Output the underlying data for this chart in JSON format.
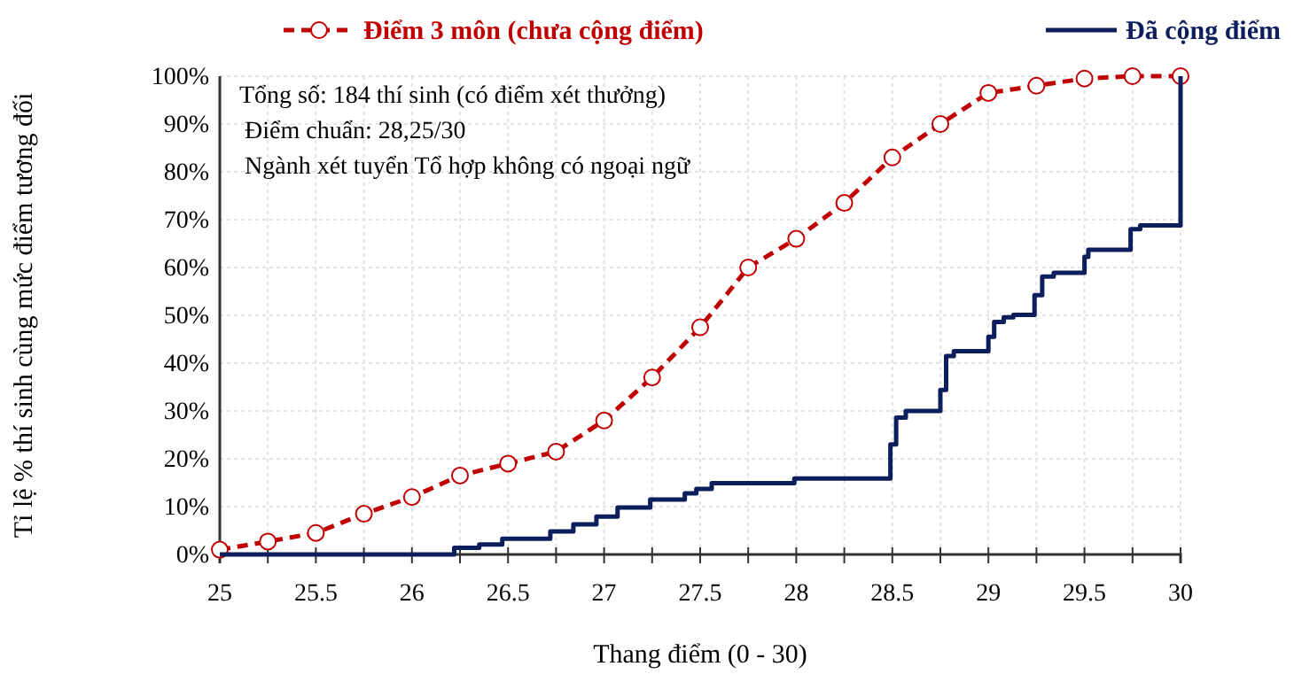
{
  "chart_data": {
    "type": "line",
    "xlabel": "Thang điểm (0 - 30)",
    "ylabel": "Tỉ lệ % thí sinh cùng mức điểm tương đối",
    "xlim": [
      25,
      30
    ],
    "xticks": [
      25,
      {
        "value": 25.25,
        "label": null
      },
      25.5,
      {
        "value": 25.75,
        "label": null
      },
      26,
      {
        "value": 26.25,
        "label": null
      },
      26.5,
      {
        "value": 26.75,
        "label": null
      },
      27,
      {
        "value": 27.25,
        "label": null
      },
      27.5,
      {
        "value": 27.75,
        "label": null
      },
      28,
      {
        "value": 28.25,
        "label": null
      },
      28.5,
      {
        "value": 28.75,
        "label": null
      },
      29,
      {
        "value": 29.25,
        "label": null
      },
      29.5,
      {
        "value": 29.75,
        "label": null
      },
      30
    ],
    "ylim": [
      0,
      100
    ],
    "yticks": [
      {
        "value": 0,
        "label": "0%"
      },
      {
        "value": 10,
        "label": "10%"
      },
      {
        "value": 20,
        "label": "20%"
      },
      {
        "value": 30,
        "label": "30%"
      },
      {
        "value": 40,
        "label": "40%"
      },
      {
        "value": 50,
        "label": "50%"
      },
      {
        "value": 60,
        "label": "60%"
      },
      {
        "value": 70,
        "label": "70%"
      },
      {
        "value": 80,
        "label": "80%"
      },
      {
        "value": 90,
        "label": "90%"
      },
      {
        "value": 100,
        "label": "100%"
      }
    ],
    "grid": true,
    "legend": "top",
    "annotations": [
      "Tổng số: 184 thí sinh  (có điểm xét thưởng)",
      "Điểm chuẩn: 28,25/30",
      "Ngành xét tuyển Tổ hợp không có ngoại ngữ"
    ],
    "series": [
      {
        "name": "Điểm 3 môn (chưa cộng điểm)",
        "color": "#c00000",
        "line_style": "dashed",
        "marker": "circle",
        "x": [
          25,
          25.25,
          25.5,
          25.75,
          26,
          26.25,
          26.5,
          26.75,
          27,
          27.25,
          27.5,
          27.75,
          28,
          28.25,
          28.5,
          28.75,
          29,
          29.25,
          29.5,
          29.75,
          30
        ],
        "values": [
          1,
          2.7,
          4.5,
          8.5,
          12,
          16.5,
          19,
          21.5,
          28,
          37,
          47.5,
          60,
          66,
          73.5,
          83,
          90,
          96.5,
          98,
          99.5,
          100,
          100
        ]
      },
      {
        "name": "Đã cộng điểm",
        "type": "step",
        "color": "#0c1f5c",
        "line_style": "solid",
        "marker": "none",
        "x": [
          25,
          26.22,
          26.35,
          26.47,
          26.72,
          26.84,
          26.96,
          27.07,
          27.24,
          27.42,
          27.48,
          27.56,
          27.99,
          28.49,
          28.52,
          28.57,
          28.75,
          28.78,
          28.82,
          29,
          29.03,
          29.08,
          29.13,
          29.24,
          29.28,
          29.34,
          29.5,
          29.52,
          29.74,
          29.79,
          30
        ],
        "values": [
          0,
          1.4,
          2.1,
          3.3,
          4.8,
          6.3,
          7.9,
          9.8,
          11.5,
          12.8,
          13.7,
          14.9,
          15.9,
          23,
          28.6,
          30,
          34.4,
          41.5,
          42.5,
          45.5,
          48.6,
          49.6,
          50.1,
          54.2,
          58.1,
          58.9,
          62.2,
          63.7,
          68,
          68.8,
          100
        ]
      }
    ]
  }
}
